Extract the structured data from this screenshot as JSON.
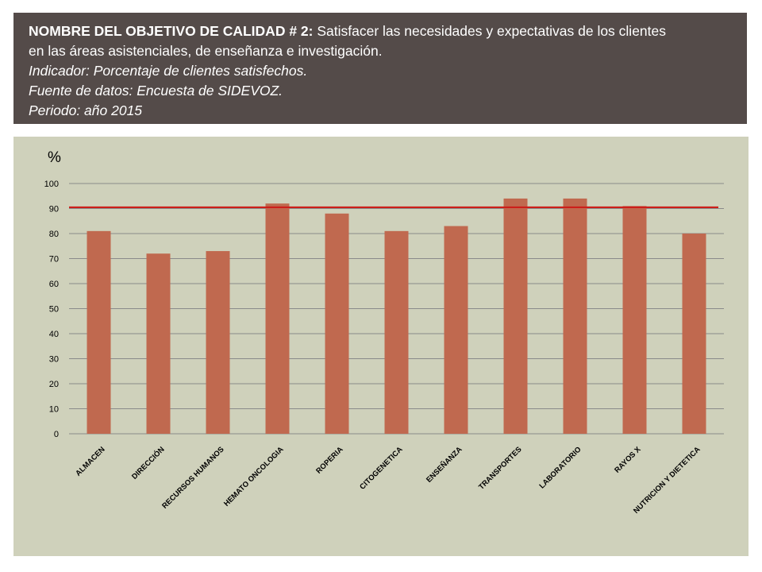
{
  "header": {
    "title_label": "NOMBRE DEL OBJETIVO DE CALIDAD # 2",
    "title_colon": ":",
    "title_text": " Satisfacer las necesidades y expectativas de los clientes",
    "title_text_line2": "en las áreas asistenciales, de enseñanza e investigación.",
    "indicator_label": "Indicador",
    "indicator_text": ": Porcentaje de clientes satisfechos.",
    "source_label": "Fuente de datos",
    "source_text": ": Encuesta de SIDEVOZ.",
    "period_label": "Periodo",
    "period_text": ": año 2015"
  },
  "colors": {
    "header_bg": "#544b49",
    "panel_bg": "#cfd1bb",
    "bar": "#c0694f",
    "target_line": "#cc1f1a",
    "grid": "#8a8a8a"
  },
  "chart_data": {
    "type": "bar",
    "ylabel": "%",
    "ylim": [
      0,
      100
    ],
    "yticks": [
      0,
      10,
      20,
      30,
      40,
      50,
      60,
      70,
      80,
      90,
      100
    ],
    "grid": true,
    "categories": [
      "ALMACEN",
      "DIRECCIÓN",
      "RECURSOS HUMANOS",
      "HEMATO ONCOLOGIA",
      "ROPERIA",
      "CITOGENETICA",
      "ENSEÑANZA",
      "TRANSPORTES",
      "LABORATORIO",
      "RAYOS X",
      "NUTRICION Y DIETETICA"
    ],
    "values": [
      81,
      72,
      73,
      92,
      88,
      81,
      83,
      94,
      94,
      91,
      80
    ],
    "target_value": 90.5
  }
}
